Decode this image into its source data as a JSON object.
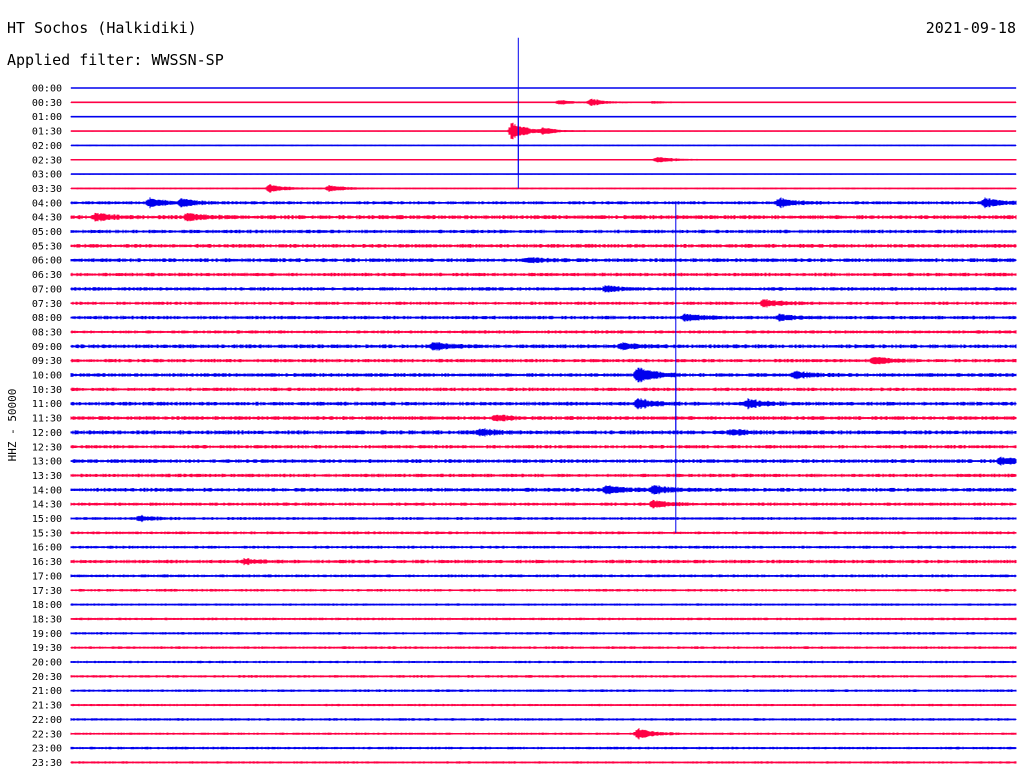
{
  "header": {
    "station": "HT Sochos (Halkidiki)",
    "date": "2021-09-18",
    "filter": "Applied filter: WWSSN-SP"
  },
  "chart_data": {
    "type": "line",
    "ylabel": "HHZ - 50000",
    "colors": {
      "odd": "#0000ee",
      "even": "#ff0044"
    },
    "rows": [
      "00:00",
      "00:30",
      "01:00",
      "01:30",
      "02:00",
      "02:30",
      "03:00",
      "03:30",
      "04:00",
      "04:30",
      "05:00",
      "05:30",
      "06:00",
      "06:30",
      "07:00",
      "07:30",
      "08:00",
      "08:30",
      "09:00",
      "09:30",
      "10:00",
      "10:30",
      "11:00",
      "11:30",
      "12:00",
      "12:30",
      "13:00",
      "13:30",
      "14:00",
      "14:30",
      "15:00",
      "15:30",
      "16:00",
      "16:30",
      "17:00",
      "17:30",
      "18:00",
      "18:30",
      "19:00",
      "19:30",
      "20:00",
      "20:30",
      "21:00",
      "21:30",
      "22:00",
      "22:30",
      "23:00",
      "23:30"
    ],
    "x_minutes": [
      0,
      30
    ],
    "noise_level": [
      0.3,
      0.4,
      0.4,
      0.4,
      0.5,
      0.5,
      0.4,
      0.6,
      1.1,
      1.4,
      1.2,
      1.3,
      1.3,
      1.2,
      1.2,
      1.1,
      1.2,
      1.1,
      1.3,
      1.2,
      1.3,
      1.2,
      1.3,
      1.3,
      1.4,
      1.2,
      1.3,
      1.2,
      1.3,
      1.1,
      1.0,
      1.0,
      1.0,
      1.2,
      1.0,
      0.9,
      0.8,
      0.9,
      0.9,
      0.9,
      0.8,
      0.9,
      0.9,
      0.8,
      0.9,
      0.8,
      0.9,
      0.8
    ],
    "events": [
      {
        "row": 1,
        "minute": 15.5,
        "amp": 2.2
      },
      {
        "row": 1,
        "minute": 16.5,
        "amp": 3.5
      },
      {
        "row": 1,
        "minute": 18.5,
        "amp": 1.2
      },
      {
        "row": 3,
        "minute": 14.0,
        "amp": 9.0
      },
      {
        "row": 3,
        "minute": 15.0,
        "amp": 2.8
      },
      {
        "row": 5,
        "minute": 18.6,
        "amp": 3.0
      },
      {
        "row": 7,
        "minute": 6.3,
        "amp": 4.0
      },
      {
        "row": 7,
        "minute": 8.2,
        "amp": 3.0
      },
      {
        "row": 8,
        "minute": 2.5,
        "amp": 4.0
      },
      {
        "row": 8,
        "minute": 3.5,
        "amp": 3.5
      },
      {
        "row": 8,
        "minute": 22.5,
        "amp": 4.2
      },
      {
        "row": 8,
        "minute": 29.0,
        "amp": 4.5
      },
      {
        "row": 9,
        "minute": 0.8,
        "amp": 3.5
      },
      {
        "row": 9,
        "minute": 3.7,
        "amp": 3.2
      },
      {
        "row": 12,
        "minute": 14.5,
        "amp": 2.0
      },
      {
        "row": 14,
        "minute": 17.0,
        "amp": 3.0
      },
      {
        "row": 15,
        "minute": 22.0,
        "amp": 4.0
      },
      {
        "row": 16,
        "minute": 19.5,
        "amp": 3.5
      },
      {
        "row": 16,
        "minute": 22.5,
        "amp": 3.0
      },
      {
        "row": 18,
        "minute": 11.5,
        "amp": 4.0
      },
      {
        "row": 18,
        "minute": 17.5,
        "amp": 3.0
      },
      {
        "row": 19,
        "minute": 25.5,
        "amp": 3.5
      },
      {
        "row": 20,
        "minute": 18.0,
        "amp": 8.0
      },
      {
        "row": 20,
        "minute": 23.0,
        "amp": 3.0
      },
      {
        "row": 22,
        "minute": 18.0,
        "amp": 5.0
      },
      {
        "row": 22,
        "minute": 21.5,
        "amp": 4.0
      },
      {
        "row": 23,
        "minute": 13.5,
        "amp": 2.5
      },
      {
        "row": 24,
        "minute": 13.0,
        "amp": 3.0
      },
      {
        "row": 24,
        "minute": 21.0,
        "amp": 2.5
      },
      {
        "row": 26,
        "minute": 29.5,
        "amp": 3.5
      },
      {
        "row": 28,
        "minute": 17.0,
        "amp": 4.0
      },
      {
        "row": 28,
        "minute": 18.5,
        "amp": 4.0
      },
      {
        "row": 29,
        "minute": 18.5,
        "amp": 3.5
      },
      {
        "row": 30,
        "minute": 2.2,
        "amp": 2.5
      },
      {
        "row": 33,
        "minute": 5.5,
        "amp": 2.5
      },
      {
        "row": 45,
        "minute": 18.0,
        "amp": 5.0
      }
    ],
    "spikes": [
      {
        "row": 0,
        "minute": 14.2,
        "up": 3.5,
        "down": 6.0
      },
      {
        "row": 2,
        "minute": 14.2,
        "up": 0,
        "down": 5.0
      },
      {
        "row": 8,
        "minute": 19.2,
        "up": 0,
        "down": 16.0
      },
      {
        "row": 20,
        "minute": 19.2,
        "up": 0,
        "down": 11.0
      }
    ]
  }
}
